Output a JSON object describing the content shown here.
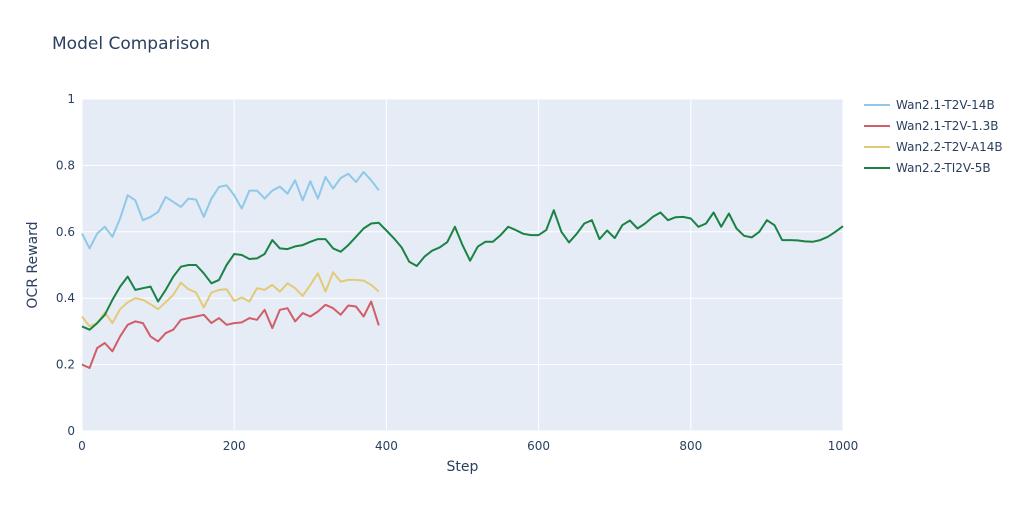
{
  "chart_data": {
    "type": "line",
    "title": "Model Comparison",
    "xlabel": "Step",
    "ylabel": "OCR Reward",
    "xlim": [
      0,
      1000
    ],
    "ylim": [
      0,
      1
    ],
    "x_ticks": [
      0,
      200,
      400,
      600,
      800,
      1000
    ],
    "x_tick_labels": [
      "0",
      "200",
      "400",
      "600",
      "800",
      "1000"
    ],
    "y_ticks": [
      0,
      0.2,
      0.4,
      0.6,
      0.8,
      1
    ],
    "y_tick_labels": [
      "0",
      "0.2",
      "0.4",
      "0.6",
      "0.8",
      "1"
    ],
    "grid": true,
    "legend_position": "right",
    "plot_bg_color": "#e5ecf6",
    "grid_color": "#ffffff",
    "text_color": "#2a3f5f",
    "series": [
      {
        "name": "Wan2.1-T2V-14B",
        "color": "#8fc8e8",
        "x_start": 0,
        "x_step": 10,
        "values": [
          0.595,
          0.55,
          0.595,
          0.615,
          0.585,
          0.64,
          0.71,
          0.695,
          0.635,
          0.645,
          0.66,
          0.705,
          0.69,
          0.675,
          0.7,
          0.697,
          0.645,
          0.7,
          0.735,
          0.74,
          0.71,
          0.67,
          0.724,
          0.724,
          0.7,
          0.724,
          0.736,
          0.715,
          0.755,
          0.695,
          0.752,
          0.7,
          0.765,
          0.73,
          0.762,
          0.775,
          0.75,
          0.78,
          0.755,
          0.725
        ]
      },
      {
        "name": "Wan2.1-T2V-1.3B",
        "color": "#d15d66",
        "x_start": 0,
        "x_step": 10,
        "values": [
          0.2,
          0.19,
          0.25,
          0.265,
          0.24,
          0.285,
          0.32,
          0.33,
          0.325,
          0.285,
          0.27,
          0.295,
          0.305,
          0.335,
          0.34,
          0.345,
          0.35,
          0.325,
          0.34,
          0.32,
          0.325,
          0.327,
          0.34,
          0.335,
          0.365,
          0.31,
          0.365,
          0.37,
          0.33,
          0.355,
          0.345,
          0.36,
          0.38,
          0.37,
          0.35,
          0.378,
          0.375,
          0.345,
          0.39,
          0.318
        ]
      },
      {
        "name": "Wan2.2-T2V-A14B",
        "color": "#e3ca76",
        "x_start": 0,
        "x_step": 10,
        "values": [
          0.345,
          0.315,
          0.325,
          0.357,
          0.325,
          0.367,
          0.388,
          0.4,
          0.395,
          0.382,
          0.367,
          0.388,
          0.41,
          0.447,
          0.427,
          0.417,
          0.372,
          0.417,
          0.425,
          0.427,
          0.392,
          0.402,
          0.39,
          0.43,
          0.425,
          0.44,
          0.42,
          0.445,
          0.43,
          0.407,
          0.44,
          0.475,
          0.42,
          0.478,
          0.45,
          0.455,
          0.455,
          0.453,
          0.44,
          0.42
        ]
      },
      {
        "name": "Wan2.2-TI2V-5B",
        "color": "#1a8244",
        "x_start": 0,
        "x_step": 10,
        "values": [
          0.315,
          0.305,
          0.325,
          0.35,
          0.395,
          0.435,
          0.465,
          0.425,
          0.43,
          0.435,
          0.39,
          0.425,
          0.465,
          0.495,
          0.5,
          0.5,
          0.475,
          0.445,
          0.455,
          0.5,
          0.533,
          0.53,
          0.518,
          0.52,
          0.533,
          0.575,
          0.55,
          0.548,
          0.556,
          0.56,
          0.57,
          0.578,
          0.578,
          0.55,
          0.54,
          0.56,
          0.585,
          0.61,
          0.625,
          0.627,
          0.604,
          0.58,
          0.553,
          0.51,
          0.497,
          0.525,
          0.543,
          0.553,
          0.569,
          0.615,
          0.56,
          0.513,
          0.555,
          0.57,
          0.57,
          0.59,
          0.615,
          0.605,
          0.594,
          0.59,
          0.59,
          0.605,
          0.665,
          0.6,
          0.568,
          0.594,
          0.625,
          0.635,
          0.578,
          0.604,
          0.581,
          0.62,
          0.634,
          0.61,
          0.625,
          0.645,
          0.658,
          0.635,
          0.644,
          0.645,
          0.64,
          0.615,
          0.625,
          0.658,
          0.615,
          0.655,
          0.61,
          0.588,
          0.583,
          0.6,
          0.635,
          0.62,
          0.575,
          0.575,
          0.574,
          0.571,
          0.57,
          0.575,
          0.585,
          0.6,
          0.617
        ]
      }
    ]
  }
}
